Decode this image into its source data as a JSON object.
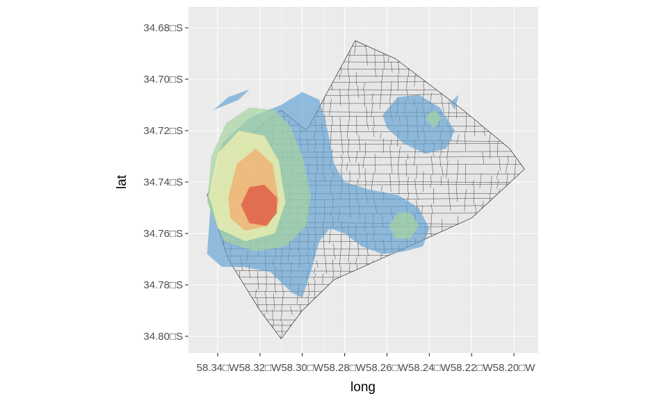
{
  "chart_data": {
    "type": "density-map",
    "xlabel": "long",
    "ylabel": "lat",
    "xlim": [
      -58.35,
      -58.19
    ],
    "ylim": [
      -34.805,
      -34.67
    ],
    "x_ticks": [
      -58.34,
      -58.32,
      -58.3,
      -58.28,
      -58.26,
      -58.24,
      -58.22,
      -58.2
    ],
    "x_tick_labels": [
      "58.34□W",
      "58.32□W",
      "58.30□W",
      "58.28□W",
      "58.26□W",
      "58.24□W",
      "58.22□W",
      "58.20□W"
    ],
    "y_ticks": [
      -34.68,
      -34.7,
      -34.72,
      -34.74,
      -34.76,
      -34.78,
      -34.8
    ],
    "y_tick_labels": [
      "34.68□S",
      "34.70□S",
      "34.72□S",
      "34.74□S",
      "34.76□S",
      "34.78□S",
      "34.80□S"
    ],
    "grid": true,
    "legend": "none",
    "boundary": [
      [
        -58.298,
        -34.72
      ],
      [
        -58.275,
        -34.685
      ],
      [
        -58.256,
        -34.692
      ],
      [
        -58.224,
        -34.712
      ],
      [
        -58.202,
        -34.727
      ],
      [
        -58.195,
        -34.735
      ],
      [
        -58.22,
        -34.754
      ],
      [
        -58.255,
        -34.767
      ],
      [
        -58.285,
        -34.778
      ],
      [
        -58.3,
        -34.79
      ],
      [
        -58.31,
        -34.801
      ],
      [
        -58.32,
        -34.79
      ],
      [
        -58.335,
        -34.77
      ],
      [
        -58.345,
        -34.745
      ],
      [
        -58.33,
        -34.725
      ],
      [
        -58.31,
        -34.712
      ]
    ],
    "density_levels": [
      {
        "level": 1,
        "color": "#5d9fd2",
        "opacity": 0.65,
        "regions": [
          [
            [
              -58.345,
              -34.768
            ],
            [
              -58.343,
              -34.745
            ],
            [
              -58.338,
              -34.725
            ],
            [
              -58.325,
              -34.715
            ],
            [
              -58.31,
              -34.71
            ],
            [
              -58.3,
              -34.705
            ],
            [
              -58.292,
              -34.708
            ],
            [
              -58.288,
              -34.72
            ],
            [
              -58.285,
              -34.733
            ],
            [
              -58.28,
              -34.74
            ],
            [
              -58.268,
              -34.743
            ],
            [
              -58.255,
              -34.745
            ],
            [
              -58.245,
              -34.75
            ],
            [
              -58.24,
              -34.758
            ],
            [
              -58.243,
              -34.765
            ],
            [
              -58.252,
              -34.767
            ],
            [
              -58.262,
              -34.768
            ],
            [
              -58.272,
              -34.765
            ],
            [
              -58.28,
              -34.76
            ],
            [
              -58.287,
              -34.758
            ],
            [
              -58.292,
              -34.763
            ],
            [
              -58.296,
              -34.775
            ],
            [
              -58.3,
              -34.785
            ],
            [
              -58.305,
              -34.783
            ],
            [
              -58.315,
              -34.775
            ],
            [
              -58.328,
              -34.773
            ],
            [
              -58.338,
              -34.773
            ]
          ],
          [
            [
              -58.262,
              -34.714
            ],
            [
              -58.255,
              -34.707
            ],
            [
              -58.245,
              -34.706
            ],
            [
              -58.235,
              -34.711
            ],
            [
              -58.228,
              -34.72
            ],
            [
              -58.232,
              -34.727
            ],
            [
              -58.242,
              -34.729
            ],
            [
              -58.252,
              -34.725
            ],
            [
              -58.26,
              -34.719
            ]
          ],
          [
            [
              -58.342,
              -34.712
            ],
            [
              -58.335,
              -34.707
            ],
            [
              -58.325,
              -34.704
            ],
            [
              -58.33,
              -34.708
            ]
          ],
          [
            [
              -58.23,
              -34.709
            ],
            [
              -58.226,
              -34.706
            ],
            [
              -58.228,
              -34.712
            ]
          ]
        ]
      },
      {
        "level": 2,
        "color": "#a6d4a0",
        "opacity": 0.7,
        "regions": [
          [
            [
              -58.345,
              -34.748
            ],
            [
              -58.343,
              -34.73
            ],
            [
              -58.336,
              -34.717
            ],
            [
              -58.325,
              -34.711
            ],
            [
              -58.313,
              -34.712
            ],
            [
              -58.306,
              -34.718
            ],
            [
              -58.3,
              -34.73
            ],
            [
              -58.296,
              -34.745
            ],
            [
              -58.298,
              -34.757
            ],
            [
              -58.308,
              -34.765
            ],
            [
              -58.322,
              -34.767
            ],
            [
              -58.337,
              -34.763
            ]
          ],
          [
            [
              -58.259,
              -34.757
            ],
            [
              -58.255,
              -34.752
            ],
            [
              -58.249,
              -34.752
            ],
            [
              -58.245,
              -34.757
            ],
            [
              -58.249,
              -34.762
            ],
            [
              -58.256,
              -34.762
            ]
          ],
          [
            [
              -58.242,
              -34.715
            ],
            [
              -58.238,
              -34.712
            ],
            [
              -58.234,
              -34.715
            ],
            [
              -58.238,
              -34.719
            ]
          ]
        ]
      },
      {
        "level": 3,
        "color": "#f2f0b0",
        "opacity": 0.75,
        "regions": [
          [
            [
              -58.344,
              -34.745
            ],
            [
              -58.34,
              -34.729
            ],
            [
              -58.33,
              -34.72
            ],
            [
              -58.318,
              -34.722
            ],
            [
              -58.311,
              -34.732
            ],
            [
              -58.308,
              -34.748
            ],
            [
              -58.313,
              -34.76
            ],
            [
              -58.327,
              -34.763
            ],
            [
              -58.34,
              -34.758
            ]
          ]
        ]
      },
      {
        "level": 4,
        "color": "#f0b070",
        "opacity": 0.8,
        "regions": [
          [
            [
              -58.335,
              -34.746
            ],
            [
              -58.331,
              -34.733
            ],
            [
              -58.322,
              -34.727
            ],
            [
              -58.314,
              -34.733
            ],
            [
              -58.311,
              -34.748
            ],
            [
              -58.316,
              -34.757
            ],
            [
              -58.327,
              -34.759
            ],
            [
              -58.334,
              -34.754
            ]
          ]
        ]
      },
      {
        "level": 5,
        "color": "#e0604a",
        "opacity": 0.85,
        "regions": [
          [
            [
              -58.329,
              -34.749
            ],
            [
              -58.325,
              -34.742
            ],
            [
              -58.318,
              -34.741
            ],
            [
              -58.312,
              -34.746
            ],
            [
              -58.312,
              -34.752
            ],
            [
              -58.317,
              -34.757
            ],
            [
              -58.325,
              -34.756
            ]
          ]
        ]
      }
    ]
  }
}
